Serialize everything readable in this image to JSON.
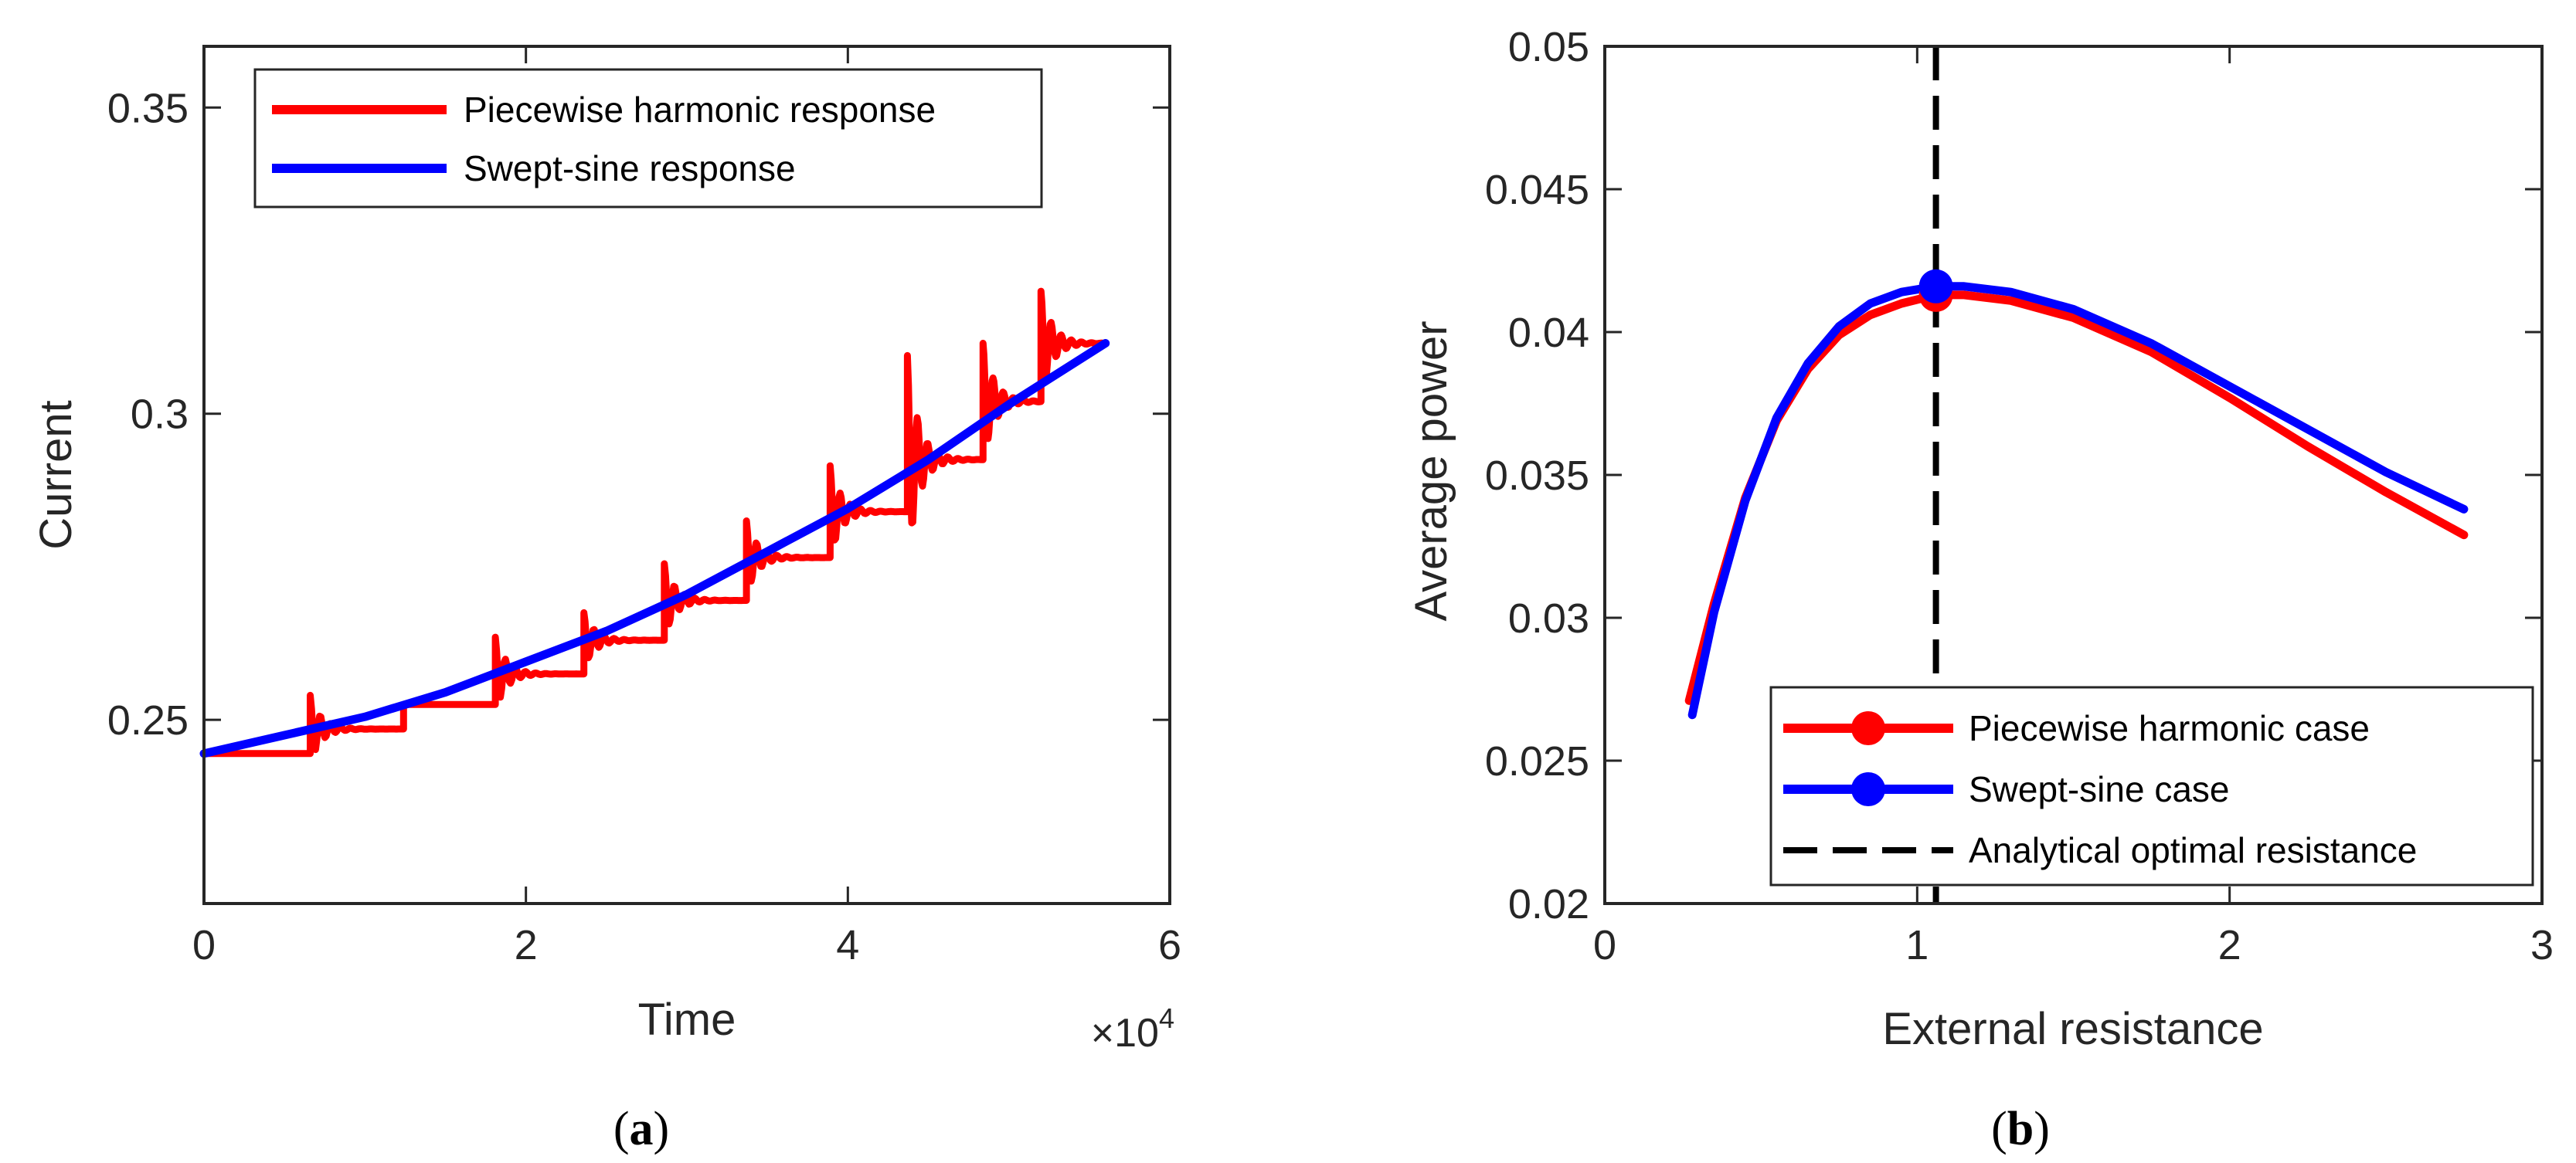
{
  "chart_data": [
    {
      "type": "line",
      "panel": "a",
      "caption": {
        "open": "(",
        "letter": "a",
        "close": ")"
      },
      "xlabel": "Time",
      "ylabel": "Current",
      "x_multiplier": {
        "base": "×10",
        "exponent": "4"
      },
      "xlim": [
        0,
        6
      ],
      "ylim": [
        0.22,
        0.36
      ],
      "xticks": [
        0,
        2,
        4,
        6
      ],
      "xtick_labels": [
        "0",
        "2",
        "4",
        "6"
      ],
      "yticks": [
        0.25,
        0.3,
        0.35
      ],
      "ytick_labels": [
        "0.25",
        "0.3",
        "0.35"
      ],
      "legend_position": "top-left",
      "series": [
        {
          "name": "Piecewise harmonic response",
          "color": "#ff0000",
          "style": "staircase-with-transients",
          "step_starts": [
            0,
            0.66,
            1.24,
            1.81,
            2.36,
            2.86,
            3.37,
            3.89,
            4.37,
            4.84,
            5.2
          ],
          "step_levels": [
            0.2445,
            0.2485,
            0.2525,
            0.2575,
            0.263,
            0.2695,
            0.2765,
            0.284,
            0.2925,
            0.302,
            0.3115
          ],
          "transient_peaks": [
            0.2445,
            0.254,
            0.2525,
            0.2635,
            0.2675,
            0.2755,
            0.2825,
            0.2915,
            0.3095,
            0.3115,
            0.32
          ],
          "x_end": 5.6
        },
        {
          "name": "Swept-sine response",
          "color": "#0000ff",
          "x": [
            0,
            0.5,
            1,
            1.5,
            2,
            2.5,
            3,
            3.5,
            4,
            4.5,
            5,
            5.6
          ],
          "values": [
            0.2445,
            0.2475,
            0.2505,
            0.2545,
            0.2595,
            0.2645,
            0.2705,
            0.2775,
            0.2845,
            0.2925,
            0.3015,
            0.3115
          ]
        }
      ]
    },
    {
      "type": "line",
      "panel": "b",
      "caption": {
        "open": "(",
        "letter": "b",
        "close": ")"
      },
      "xlabel": "External resistance",
      "ylabel": "Average power",
      "xlim": [
        0,
        3
      ],
      "ylim": [
        0.02,
        0.05
      ],
      "xticks": [
        0,
        1,
        2,
        3
      ],
      "xtick_labels": [
        "0",
        "1",
        "2",
        "3"
      ],
      "yticks": [
        0.02,
        0.025,
        0.03,
        0.035,
        0.04,
        0.045,
        0.05
      ],
      "ytick_labels": [
        "0.02",
        "0.025",
        "0.03",
        "0.035",
        "0.04",
        "0.045",
        "0.05"
      ],
      "legend_position": "bottom-right",
      "series": [
        {
          "name": "Piecewise harmonic case",
          "color": "#ff0000",
          "x": [
            0.27,
            0.35,
            0.45,
            0.55,
            0.65,
            0.75,
            0.85,
            0.95,
            1.06,
            1.15,
            1.3,
            1.5,
            1.75,
            2.0,
            2.25,
            2.5,
            2.75
          ],
          "values": [
            0.0271,
            0.0305,
            0.0342,
            0.0369,
            0.0387,
            0.0399,
            0.0406,
            0.041,
            0.0413,
            0.0413,
            0.0411,
            0.0405,
            0.0393,
            0.0377,
            0.036,
            0.0344,
            0.0329
          ],
          "marker": {
            "x": 1.06,
            "y": 0.0413
          }
        },
        {
          "name": "Swept-sine case",
          "color": "#0000ff",
          "x": [
            0.28,
            0.35,
            0.45,
            0.55,
            0.65,
            0.75,
            0.85,
            0.95,
            1.06,
            1.15,
            1.3,
            1.5,
            1.75,
            2.0,
            2.25,
            2.5,
            2.75
          ],
          "values": [
            0.0266,
            0.0302,
            0.0341,
            0.037,
            0.0389,
            0.0402,
            0.041,
            0.0414,
            0.0416,
            0.0416,
            0.0414,
            0.0408,
            0.0396,
            0.0381,
            0.0366,
            0.0351,
            0.0338
          ],
          "marker": {
            "x": 1.06,
            "y": 0.0416
          }
        },
        {
          "name": "Analytical optimal resistance",
          "color": "#000000",
          "style": "dashed-vertical",
          "x_value": 1.06
        }
      ]
    }
  ]
}
